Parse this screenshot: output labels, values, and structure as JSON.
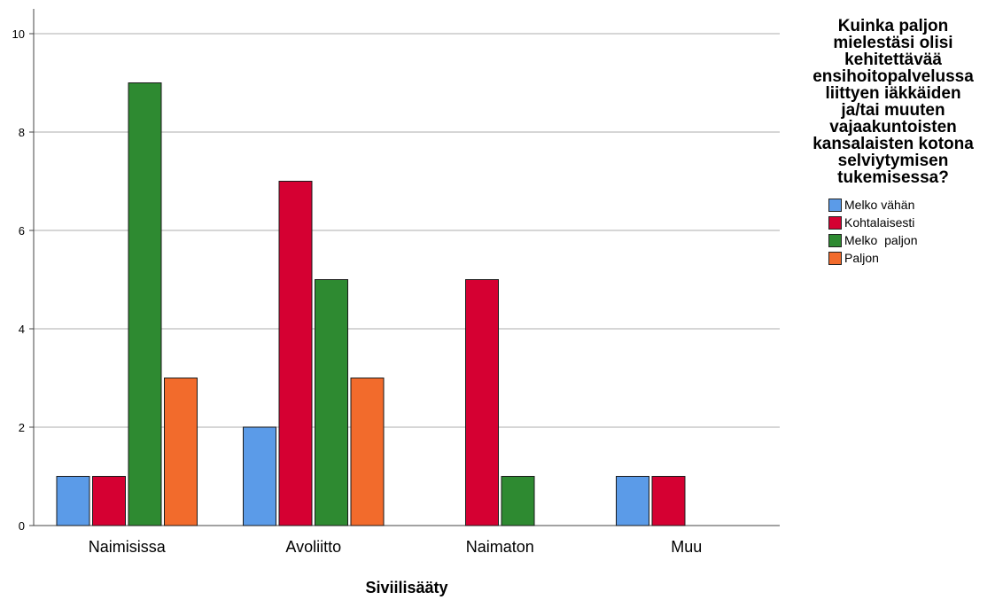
{
  "chart_data": {
    "type": "bar",
    "categories": [
      "Naimisissa",
      "Avoliitto",
      "Naimaton",
      "Muu"
    ],
    "series": [
      {
        "name": "Melko vähän",
        "color": "#5b9be8",
        "values": [
          1,
          2,
          null,
          1
        ]
      },
      {
        "name": "Kohtalaisesti",
        "color": "#d50032",
        "values": [
          1,
          7,
          5,
          1
        ]
      },
      {
        "name": "Melko  paljon",
        "color": "#2e8a31",
        "values": [
          9,
          5,
          1,
          null
        ]
      },
      {
        "name": "Paljon",
        "color": "#f26b2c",
        "values": [
          3,
          3,
          null,
          null
        ]
      }
    ],
    "legend_title": "Kuinka paljon mielestäsi olisi kehitettävää ensihoitopalvelussa liittyen iäkkäiden ja/tai muuten vajaakuntoisten kansalaisten kotona selviytymisen tukemisessa?",
    "legend_title_lines": [
      "Kuinka paljon",
      "mielestäsi olisi",
      "kehitettävää",
      "ensihoitopalvelussa",
      "liittyen iäkkäiden",
      "ja/tai muuten",
      "vajaakuntoisten",
      "kansalaisten kotona",
      "selviytymisen",
      "tukemisessa?"
    ],
    "legend_position": "right",
    "xlabel": "Siviilisääty",
    "ylabel": "",
    "ylim": [
      0,
      10
    ],
    "yticks": [
      0,
      2,
      4,
      6,
      8,
      10
    ],
    "grid": true
  }
}
